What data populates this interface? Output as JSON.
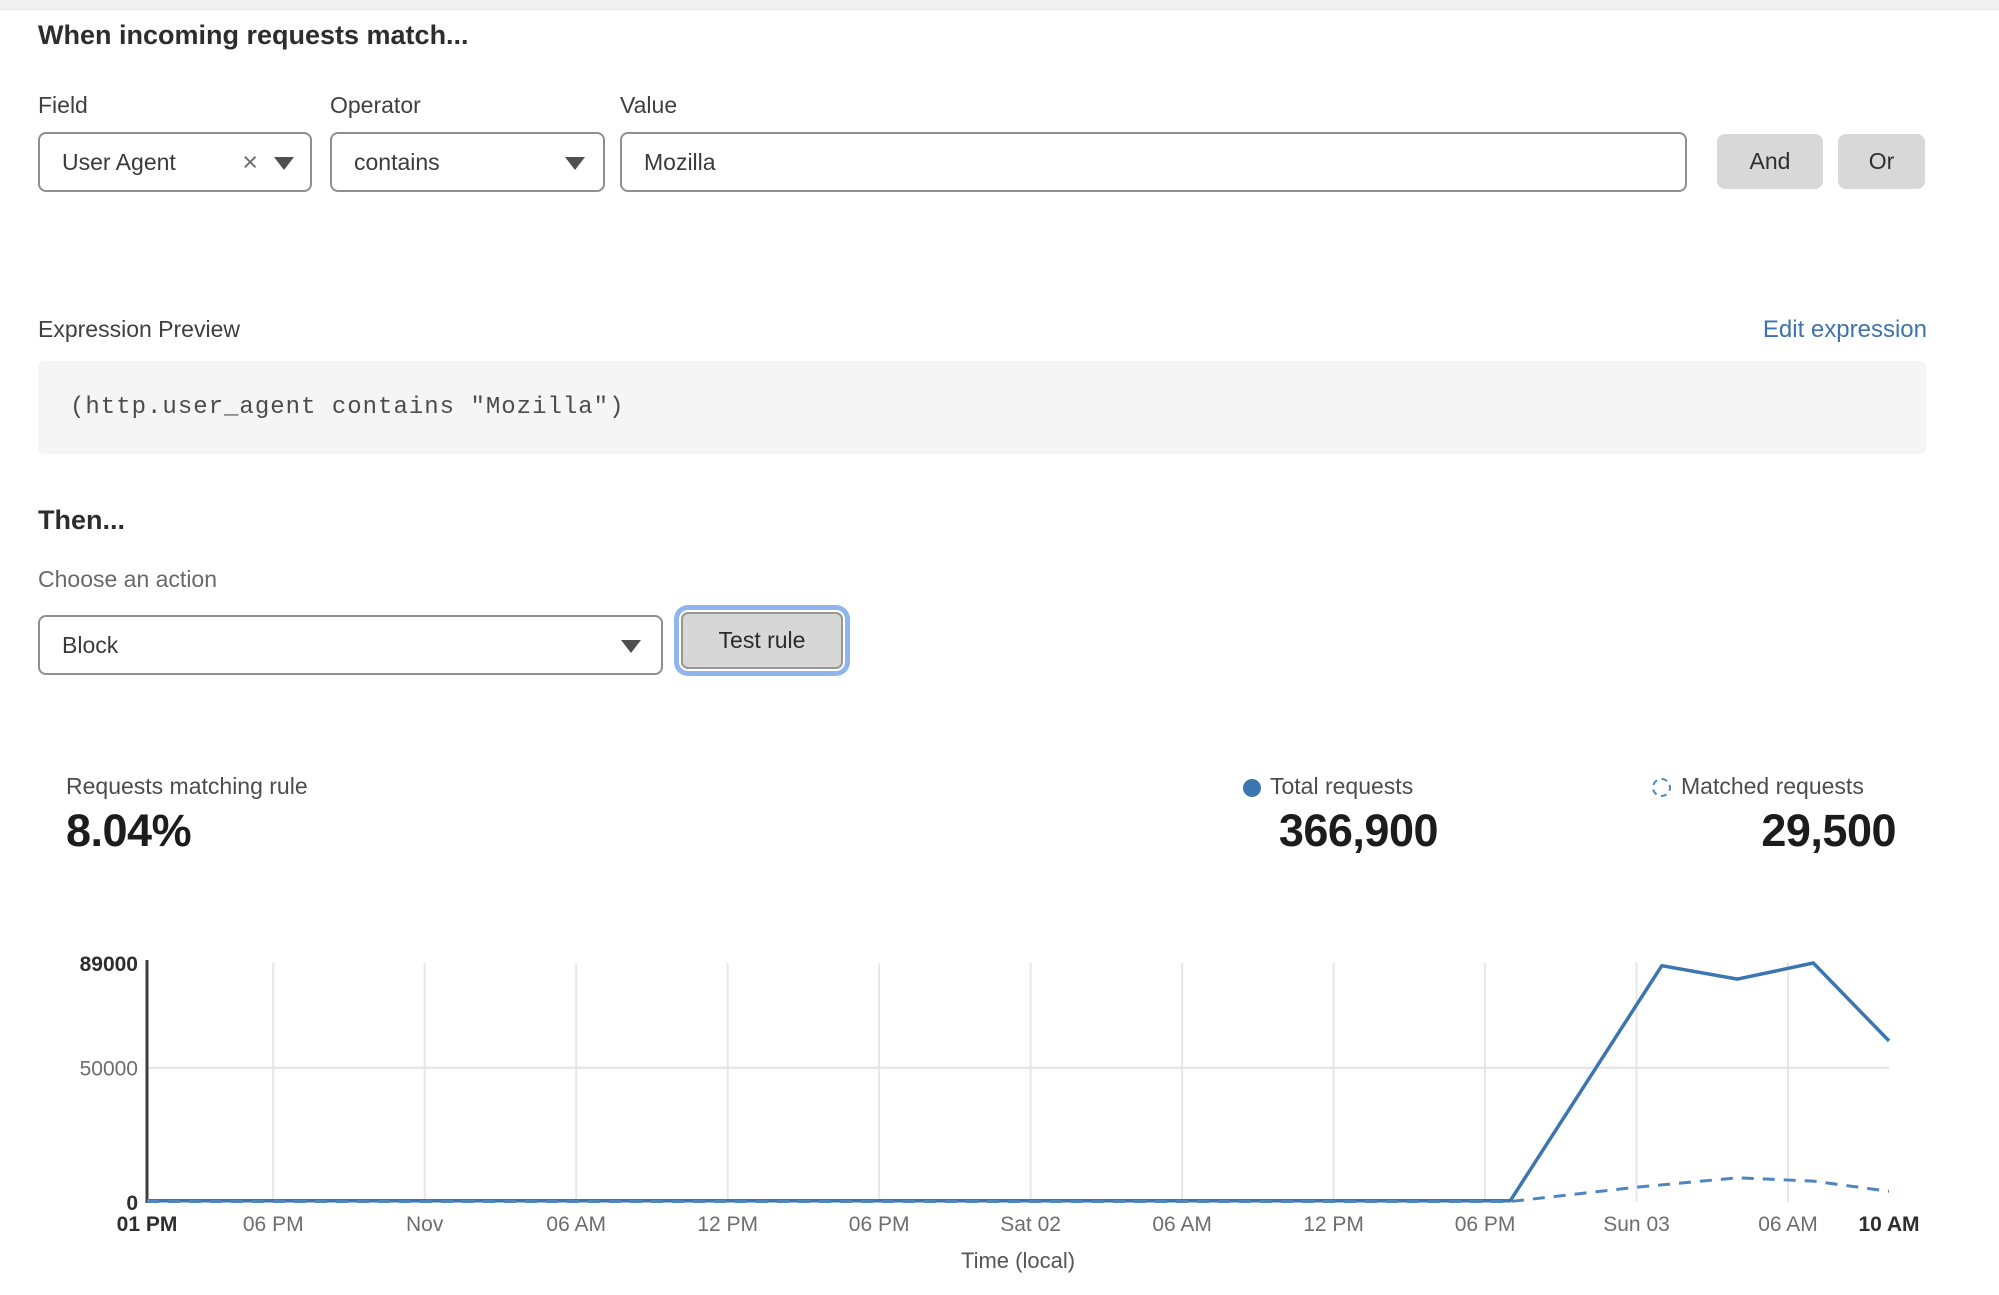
{
  "colors": {
    "chart_blue": "#3c76b0",
    "chart_blue_dashed": "#4e86c2",
    "link_blue": "#3e74ad",
    "button_gray": "#d8d8d8",
    "focus_ring_blue": "#8fb5ec"
  },
  "rule_builder": {
    "heading": "When incoming requests match...",
    "field": {
      "label": "Field",
      "value": "User Agent"
    },
    "operator": {
      "label": "Operator",
      "value": "contains"
    },
    "value": {
      "label": "Value",
      "value": "Mozilla"
    },
    "and_label": "And",
    "or_label": "Or"
  },
  "expression": {
    "label": "Expression Preview",
    "edit_link": "Edit expression",
    "code": "(http.user_agent contains \"Mozilla\")"
  },
  "action": {
    "heading": "Then...",
    "choose_label": "Choose an action",
    "selected": "Block",
    "test_button": "Test rule"
  },
  "stats": {
    "match_label": "Requests matching rule",
    "match_value": "8.04%",
    "total_label": "Total requests",
    "total_value": "366,900",
    "matched_label": "Matched requests",
    "matched_value": "29,500"
  },
  "chart_data": {
    "type": "line",
    "xlabel": "Time (local)",
    "ylim": [
      0,
      89000
    ],
    "x_range_hours": [
      0,
      69
    ],
    "grid": "on",
    "legend_position": "top-right",
    "y_ticks": [
      {
        "value": 0,
        "label": "0",
        "bold": true,
        "grid": false
      },
      {
        "value": 50000,
        "label": "50000",
        "bold": false,
        "grid": true
      },
      {
        "value": 89000,
        "label": "89000",
        "bold": true,
        "grid": false
      }
    ],
    "x_ticks": [
      {
        "hour": 0,
        "label": "01 PM",
        "bold": true,
        "grid": false
      },
      {
        "hour": 5,
        "label": "06 PM",
        "bold": false,
        "grid": true
      },
      {
        "hour": 11,
        "label": "Nov",
        "bold": false,
        "grid": true
      },
      {
        "hour": 17,
        "label": "06 AM",
        "bold": false,
        "grid": true
      },
      {
        "hour": 23,
        "label": "12 PM",
        "bold": false,
        "grid": true
      },
      {
        "hour": 29,
        "label": "06 PM",
        "bold": false,
        "grid": true
      },
      {
        "hour": 35,
        "label": "Sat 02",
        "bold": false,
        "grid": true
      },
      {
        "hour": 41,
        "label": "06 AM",
        "bold": false,
        "grid": true
      },
      {
        "hour": 47,
        "label": "12 PM",
        "bold": false,
        "grid": true
      },
      {
        "hour": 53,
        "label": "06 PM",
        "bold": false,
        "grid": true
      },
      {
        "hour": 59,
        "label": "Sun 03",
        "bold": false,
        "grid": true
      },
      {
        "hour": 65,
        "label": "06 AM",
        "bold": false,
        "grid": true
      },
      {
        "hour": 69,
        "label": "10 AM",
        "bold": true,
        "grid": false
      }
    ],
    "series": [
      {
        "name": "Total requests",
        "line_style": "solid",
        "color": "#3c76b0",
        "points": [
          [
            0,
            500
          ],
          [
            54,
            500
          ],
          [
            60,
            88000
          ],
          [
            63,
            83000
          ],
          [
            66,
            89000
          ],
          [
            69,
            60000
          ]
        ]
      },
      {
        "name": "Matched requests",
        "line_style": "dashed",
        "color": "#4e86c2",
        "points": [
          [
            0,
            200
          ],
          [
            54,
            200
          ],
          [
            59,
            5500
          ],
          [
            63,
            9000
          ],
          [
            66,
            7800
          ],
          [
            69,
            4000
          ]
        ]
      }
    ]
  }
}
